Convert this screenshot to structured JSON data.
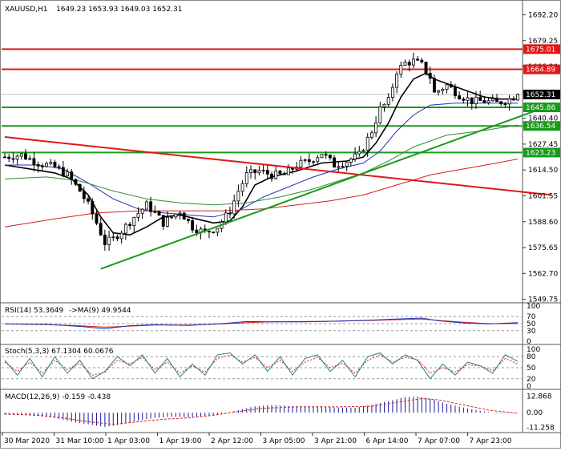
{
  "header": {
    "symbol": "XAUUSD,H1",
    "ohlc": "1649.23 1653.93 1649.03 1652.31"
  },
  "colors": {
    "candle": "#000000",
    "sma_fast": "#000000",
    "sma_blue": "#1f2fb8",
    "sma_green": "#2f8f2f",
    "sma_red": "#d41f1f",
    "level_red": "#e01818",
    "level_green": "#1a9a1a",
    "rsi_line": "#1f2fb8",
    "rsi_ma": "#d41f1f",
    "stoch_main": "#2a7f7f",
    "stoch_signal": "#d41f1f",
    "macd_hist": "#1a1aa0",
    "macd_signal": "#d41f1f",
    "price_tag_red": "#e01818",
    "price_tag_green": "#1a9a1a",
    "current_tag": "#000000"
  },
  "chart_data": {
    "type": "candlestick",
    "symbol": "XAUUSD",
    "timeframe": "H1",
    "y_ticks": [
      1692.2,
      1679.25,
      1666.3,
      1653.35,
      1640.4,
      1627.45,
      1614.5,
      1601.55,
      1588.6,
      1575.65,
      1562.7,
      1549.75
    ],
    "ylim": [
      1548.0,
      1698.0
    ],
    "x_labels": [
      "30 Mar 2020",
      "31 Mar 10:00",
      "1 Apr 03:00",
      "1 Apr 19:00",
      "2 Apr 12:00",
      "3 Apr 05:00",
      "3 Apr 21:00",
      "6 Apr 14:00",
      "7 Apr 07:00",
      "7 Apr 23:00"
    ],
    "n_bars": 124,
    "close_path": [
      [
        0,
        1621
      ],
      [
        4,
        1622
      ],
      [
        8,
        1618
      ],
      [
        12,
        1616
      ],
      [
        15,
        1612
      ],
      [
        18,
        1604
      ],
      [
        20,
        1597
      ],
      [
        22,
        1588
      ],
      [
        24,
        1578
      ],
      [
        26,
        1580
      ],
      [
        28,
        1584
      ],
      [
        31,
        1591
      ],
      [
        34,
        1597
      ],
      [
        36,
        1593
      ],
      [
        38,
        1588
      ],
      [
        40,
        1591
      ],
      [
        42,
        1594
      ],
      [
        45,
        1586
      ],
      [
        48,
        1583
      ],
      [
        51,
        1586
      ],
      [
        54,
        1594
      ],
      [
        56,
        1604
      ],
      [
        58,
        1612
      ],
      [
        61,
        1614
      ],
      [
        64,
        1612
      ],
      [
        67,
        1612
      ],
      [
        70,
        1617
      ],
      [
        73,
        1619
      ],
      [
        76,
        1623
      ],
      [
        79,
        1617
      ],
      [
        82,
        1619
      ],
      [
        85,
        1622
      ],
      [
        88,
        1634
      ],
      [
        90,
        1645
      ],
      [
        92,
        1649
      ],
      [
        94,
        1664
      ],
      [
        96,
        1668
      ],
      [
        98,
        1669
      ],
      [
        100,
        1667
      ],
      [
        102,
        1661
      ],
      [
        103,
        1653
      ],
      [
        106,
        1657
      ],
      [
        109,
        1652
      ],
      [
        112,
        1649
      ],
      [
        115,
        1649
      ],
      [
        118,
        1648
      ],
      [
        121,
        1650
      ],
      [
        123,
        1652.31
      ]
    ],
    "moving_averages": [
      {
        "color": "sma_fast",
        "points": [
          [
            0,
            1617
          ],
          [
            6,
            1615
          ],
          [
            12,
            1613
          ],
          [
            16,
            1610
          ],
          [
            20,
            1602
          ],
          [
            23,
            1591
          ],
          [
            26,
            1583
          ],
          [
            30,
            1582
          ],
          [
            34,
            1586
          ],
          [
            38,
            1591
          ],
          [
            42,
            1592
          ],
          [
            46,
            1590
          ],
          [
            50,
            1588
          ],
          [
            54,
            1589
          ],
          [
            57,
            1596
          ],
          [
            60,
            1607
          ],
          [
            64,
            1611
          ],
          [
            70,
            1614
          ],
          [
            76,
            1618
          ],
          [
            82,
            1619
          ],
          [
            86,
            1621
          ],
          [
            89,
            1628
          ],
          [
            92,
            1638
          ],
          [
            95,
            1651
          ],
          [
            98,
            1660
          ],
          [
            101,
            1663
          ],
          [
            103,
            1660
          ],
          [
            107,
            1657
          ],
          [
            111,
            1654
          ],
          [
            115,
            1651
          ],
          [
            119,
            1650
          ],
          [
            123,
            1650
          ]
        ]
      },
      {
        "color": "sma_blue",
        "points": [
          [
            0,
            1617
          ],
          [
            8,
            1617
          ],
          [
            14,
            1615
          ],
          [
            20,
            1608
          ],
          [
            26,
            1600
          ],
          [
            32,
            1595
          ],
          [
            38,
            1593
          ],
          [
            44,
            1592
          ],
          [
            50,
            1591
          ],
          [
            56,
            1594
          ],
          [
            62,
            1601
          ],
          [
            68,
            1606
          ],
          [
            74,
            1611
          ],
          [
            80,
            1615
          ],
          [
            86,
            1618
          ],
          [
            90,
            1624
          ],
          [
            94,
            1634
          ],
          [
            98,
            1642
          ],
          [
            102,
            1647
          ],
          [
            108,
            1648
          ],
          [
            114,
            1648
          ],
          [
            119,
            1648
          ],
          [
            123,
            1648
          ]
        ]
      },
      {
        "color": "sma_green",
        "points": [
          [
            0,
            1610
          ],
          [
            10,
            1611
          ],
          [
            18,
            1609
          ],
          [
            26,
            1604
          ],
          [
            34,
            1600
          ],
          [
            42,
            1598
          ],
          [
            50,
            1597
          ],
          [
            58,
            1598
          ],
          [
            66,
            1601
          ],
          [
            74,
            1605
          ],
          [
            80,
            1609
          ],
          [
            86,
            1613
          ],
          [
            92,
            1619
          ],
          [
            98,
            1626
          ],
          [
            106,
            1632
          ],
          [
            114,
            1634
          ],
          [
            123,
            1637
          ]
        ]
      },
      {
        "color": "sma_red",
        "points": [
          [
            0,
            1586
          ],
          [
            12,
            1590
          ],
          [
            22,
            1593
          ],
          [
            32,
            1594
          ],
          [
            42,
            1594
          ],
          [
            52,
            1594
          ],
          [
            62,
            1595
          ],
          [
            70,
            1597
          ],
          [
            78,
            1599
          ],
          [
            86,
            1602
          ],
          [
            94,
            1607
          ],
          [
            102,
            1612
          ],
          [
            110,
            1615
          ],
          [
            118,
            1618
          ],
          [
            123,
            1620
          ]
        ]
      }
    ],
    "horizontal_levels": [
      {
        "value": 1675.01,
        "label": "1675.01",
        "color": "level_red"
      },
      {
        "value": 1664.89,
        "label": "1664.89",
        "color": "level_red"
      },
      {
        "value": 1645.86,
        "label": "1645.86",
        "color": "level_green"
      },
      {
        "value": 1636.54,
        "label": "1636.54",
        "color": "level_green"
      },
      {
        "value": 1623.23,
        "label": "1623.23",
        "color": "level_green"
      }
    ],
    "current_price": {
      "value": 1652.31,
      "label": "1652.31"
    },
    "trendlines": [
      {
        "color": "level_red",
        "from": [
          0,
          1631
        ],
        "to": [
          131,
          1602
        ]
      },
      {
        "color": "level_green",
        "from": [
          23,
          1565
        ],
        "to": [
          131,
          1647
        ]
      }
    ]
  },
  "indicators": {
    "rsi": {
      "label": "RSI(14) 53.3649",
      "ma_label": "->MA(9) 49.9544",
      "ticks": [
        "100",
        "70",
        "50",
        "30",
        "0"
      ],
      "levels": [
        70,
        50,
        30
      ],
      "values": [
        [
          0,
          49
        ],
        [
          10,
          48
        ],
        [
          18,
          42
        ],
        [
          24,
          36
        ],
        [
          30,
          44
        ],
        [
          36,
          47
        ],
        [
          44,
          45
        ],
        [
          52,
          50
        ],
        [
          58,
          56
        ],
        [
          64,
          55
        ],
        [
          72,
          55
        ],
        [
          80,
          57
        ],
        [
          88,
          60
        ],
        [
          96,
          64
        ],
        [
          100,
          66
        ],
        [
          104,
          58
        ],
        [
          110,
          52
        ],
        [
          116,
          49
        ],
        [
          123,
          53
        ]
      ],
      "ma_values": [
        [
          0,
          49
        ],
        [
          10,
          47
        ],
        [
          18,
          44
        ],
        [
          24,
          40
        ],
        [
          30,
          43
        ],
        [
          36,
          46
        ],
        [
          44,
          46
        ],
        [
          52,
          49
        ],
        [
          58,
          53
        ],
        [
          64,
          55
        ],
        [
          72,
          56
        ],
        [
          80,
          57
        ],
        [
          88,
          59
        ],
        [
          96,
          62
        ],
        [
          100,
          63
        ],
        [
          104,
          59
        ],
        [
          110,
          54
        ],
        [
          116,
          50
        ],
        [
          123,
          50
        ]
      ]
    },
    "stoch": {
      "label": "Stoch(5,3,3) 67.1304 60.0676",
      "ticks": [
        "100",
        "80",
        "50",
        "20",
        "0"
      ],
      "levels": [
        80,
        50,
        20
      ],
      "values": [
        [
          0,
          70
        ],
        [
          3,
          30
        ],
        [
          6,
          75
        ],
        [
          9,
          25
        ],
        [
          12,
          80
        ],
        [
          15,
          35
        ],
        [
          18,
          70
        ],
        [
          21,
          20
        ],
        [
          24,
          40
        ],
        [
          27,
          80
        ],
        [
          30,
          55
        ],
        [
          33,
          85
        ],
        [
          36,
          35
        ],
        [
          39,
          75
        ],
        [
          42,
          25
        ],
        [
          45,
          60
        ],
        [
          48,
          30
        ],
        [
          51,
          85
        ],
        [
          54,
          90
        ],
        [
          57,
          60
        ],
        [
          60,
          85
        ],
        [
          63,
          40
        ],
        [
          66,
          80
        ],
        [
          69,
          30
        ],
        [
          72,
          75
        ],
        [
          75,
          85
        ],
        [
          78,
          40
        ],
        [
          81,
          70
        ],
        [
          84,
          25
        ],
        [
          87,
          80
        ],
        [
          90,
          90
        ],
        [
          93,
          60
        ],
        [
          96,
          85
        ],
        [
          99,
          70
        ],
        [
          102,
          20
        ],
        [
          105,
          60
        ],
        [
          108,
          30
        ],
        [
          111,
          65
        ],
        [
          114,
          55
        ],
        [
          117,
          35
        ],
        [
          120,
          85
        ],
        [
          123,
          67
        ]
      ],
      "signal_values": [
        [
          0,
          65
        ],
        [
          3,
          40
        ],
        [
          6,
          65
        ],
        [
          9,
          35
        ],
        [
          12,
          70
        ],
        [
          15,
          45
        ],
        [
          18,
          62
        ],
        [
          21,
          30
        ],
        [
          24,
          38
        ],
        [
          27,
          70
        ],
        [
          30,
          60
        ],
        [
          33,
          78
        ],
        [
          36,
          45
        ],
        [
          39,
          65
        ],
        [
          42,
          35
        ],
        [
          45,
          55
        ],
        [
          48,
          38
        ],
        [
          51,
          75
        ],
        [
          54,
          85
        ],
        [
          57,
          65
        ],
        [
          60,
          78
        ],
        [
          63,
          50
        ],
        [
          66,
          70
        ],
        [
          69,
          40
        ],
        [
          72,
          65
        ],
        [
          75,
          78
        ],
        [
          78,
          50
        ],
        [
          81,
          62
        ],
        [
          84,
          35
        ],
        [
          87,
          70
        ],
        [
          90,
          85
        ],
        [
          93,
          65
        ],
        [
          96,
          78
        ],
        [
          99,
          72
        ],
        [
          102,
          35
        ],
        [
          105,
          50
        ],
        [
          108,
          38
        ],
        [
          111,
          58
        ],
        [
          114,
          55
        ],
        [
          117,
          42
        ],
        [
          120,
          75
        ],
        [
          123,
          60
        ]
      ]
    },
    "macd": {
      "label": "MACD(12,26,9) -0.159 -0.438",
      "ticks": [
        "12.868",
        "0.00",
        "-11.258"
      ],
      "range": [
        -13.5,
        15
      ],
      "histogram": [
        [
          0,
          -1.5
        ],
        [
          6,
          -2
        ],
        [
          12,
          -4
        ],
        [
          16,
          -7
        ],
        [
          20,
          -9
        ],
        [
          24,
          -11
        ],
        [
          28,
          -9
        ],
        [
          32,
          -6
        ],
        [
          36,
          -4
        ],
        [
          40,
          -3
        ],
        [
          44,
          -3.5
        ],
        [
          48,
          -3
        ],
        [
          52,
          -1
        ],
        [
          56,
          2
        ],
        [
          60,
          5
        ],
        [
          64,
          6
        ],
        [
          70,
          5
        ],
        [
          76,
          5
        ],
        [
          80,
          4
        ],
        [
          84,
          4
        ],
        [
          88,
          6
        ],
        [
          92,
          9
        ],
        [
          96,
          12
        ],
        [
          99,
          12.5
        ],
        [
          102,
          11
        ],
        [
          106,
          7
        ],
        [
          110,
          4
        ],
        [
          114,
          1.5
        ],
        [
          118,
          -0.5
        ],
        [
          123,
          -0.16
        ]
      ],
      "signal": [
        [
          0,
          -1
        ],
        [
          8,
          -2
        ],
        [
          14,
          -4
        ],
        [
          20,
          -7
        ],
        [
          26,
          -9
        ],
        [
          32,
          -7
        ],
        [
          38,
          -5
        ],
        [
          44,
          -4
        ],
        [
          50,
          -2
        ],
        [
          56,
          1
        ],
        [
          62,
          3.5
        ],
        [
          70,
          4.5
        ],
        [
          80,
          4.5
        ],
        [
          88,
          5
        ],
        [
          94,
          8
        ],
        [
          100,
          11
        ],
        [
          104,
          10
        ],
        [
          110,
          6
        ],
        [
          116,
          2
        ],
        [
          123,
          -0.44
        ]
      ]
    }
  }
}
